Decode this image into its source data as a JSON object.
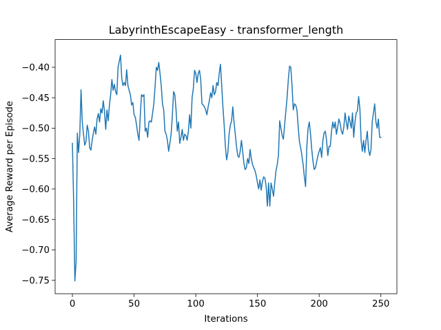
{
  "chart_data": {
    "type": "line",
    "title": "LabyrinthEscapeEasy - transformer_length",
    "xlabel": "Iterations",
    "ylabel": "Average Reward per Episode",
    "xlim": [
      -14,
      263
    ],
    "ylim": [
      -0.772,
      -0.3545
    ],
    "x_ticks": [
      0,
      50,
      100,
      150,
      200,
      250
    ],
    "x_tick_labels": [
      "0",
      "50",
      "100",
      "150",
      "200",
      "250"
    ],
    "y_ticks": [
      -0.75,
      -0.7,
      -0.65,
      -0.6,
      -0.55,
      -0.5,
      -0.45,
      -0.4
    ],
    "y_tick_labels": [
      "−0.75",
      "−0.70",
      "−0.65",
      "−0.60",
      "−0.55",
      "−0.50",
      "−0.45",
      "−0.40"
    ],
    "grid": false,
    "line_color": "#1f77b4",
    "series": [
      {
        "y": [
          -0.525,
          -0.62,
          -0.751,
          -0.72,
          -0.508,
          -0.54,
          -0.51,
          -0.437,
          -0.49,
          -0.51,
          -0.528,
          -0.522,
          -0.495,
          -0.505,
          -0.532,
          -0.536,
          -0.52,
          -0.508,
          -0.498,
          -0.51,
          -0.485,
          -0.476,
          -0.49,
          -0.468,
          -0.475,
          -0.455,
          -0.472,
          -0.502,
          -0.47,
          -0.488,
          -0.462,
          -0.445,
          -0.42,
          -0.438,
          -0.428,
          -0.44,
          -0.445,
          -0.4,
          -0.39,
          -0.38,
          -0.418,
          -0.43,
          -0.425,
          -0.43,
          -0.404,
          -0.43,
          -0.438,
          -0.445,
          -0.462,
          -0.458,
          -0.478,
          -0.482,
          -0.495,
          -0.51,
          -0.52,
          -0.48,
          -0.445,
          -0.448,
          -0.445,
          -0.505,
          -0.5,
          -0.515,
          -0.49,
          -0.488,
          -0.49,
          -0.475,
          -0.46,
          -0.432,
          -0.4,
          -0.405,
          -0.392,
          -0.41,
          -0.43,
          -0.46,
          -0.47,
          -0.505,
          -0.51,
          -0.52,
          -0.538,
          -0.525,
          -0.51,
          -0.48,
          -0.44,
          -0.445,
          -0.47,
          -0.505,
          -0.49,
          -0.525,
          -0.515,
          -0.502,
          -0.52,
          -0.51,
          -0.512,
          -0.52,
          -0.505,
          -0.478,
          -0.5,
          -0.45,
          -0.435,
          -0.405,
          -0.41,
          -0.425,
          -0.41,
          -0.405,
          -0.42,
          -0.46,
          -0.462,
          -0.465,
          -0.47,
          -0.478,
          -0.465,
          -0.455,
          -0.442,
          -0.45,
          -0.43,
          -0.445,
          -0.44,
          -0.425,
          -0.43,
          -0.41,
          -0.395,
          -0.43,
          -0.465,
          -0.495,
          -0.53,
          -0.552,
          -0.54,
          -0.51,
          -0.495,
          -0.488,
          -0.465,
          -0.49,
          -0.51,
          -0.53,
          -0.545,
          -0.548,
          -0.538,
          -0.52,
          -0.538,
          -0.558,
          -0.568,
          -0.565,
          -0.55,
          -0.558,
          -0.535,
          -0.55,
          -0.56,
          -0.565,
          -0.57,
          -0.578,
          -0.59,
          -0.6,
          -0.585,
          -0.602,
          -0.588,
          -0.58,
          -0.582,
          -0.595,
          -0.628,
          -0.59,
          -0.628,
          -0.59,
          -0.6,
          -0.612,
          -0.59,
          -0.57,
          -0.56,
          -0.545,
          -0.488,
          -0.5,
          -0.512,
          -0.518,
          -0.495,
          -0.472,
          -0.45,
          -0.42,
          -0.398,
          -0.4,
          -0.43,
          -0.47,
          -0.46,
          -0.462,
          -0.47,
          -0.498,
          -0.522,
          -0.532,
          -0.545,
          -0.56,
          -0.58,
          -0.596,
          -0.53,
          -0.5,
          -0.49,
          -0.51,
          -0.535,
          -0.555,
          -0.568,
          -0.565,
          -0.555,
          -0.545,
          -0.538,
          -0.532,
          -0.548,
          -0.52,
          -0.508,
          -0.505,
          -0.52,
          -0.545,
          -0.53,
          -0.53,
          -0.505,
          -0.49,
          -0.5,
          -0.49,
          -0.51,
          -0.498,
          -0.485,
          -0.492,
          -0.505,
          -0.51,
          -0.498,
          -0.475,
          -0.49,
          -0.502,
          -0.48,
          -0.49,
          -0.5,
          -0.475,
          -0.515,
          -0.49,
          -0.475,
          -0.472,
          -0.448,
          -0.468,
          -0.52,
          -0.538,
          -0.52,
          -0.54,
          -0.52,
          -0.505,
          -0.535,
          -0.545,
          -0.535,
          -0.49,
          -0.475,
          -0.46,
          -0.49,
          -0.5,
          -0.485,
          -0.515,
          -0.515
        ]
      }
    ]
  }
}
